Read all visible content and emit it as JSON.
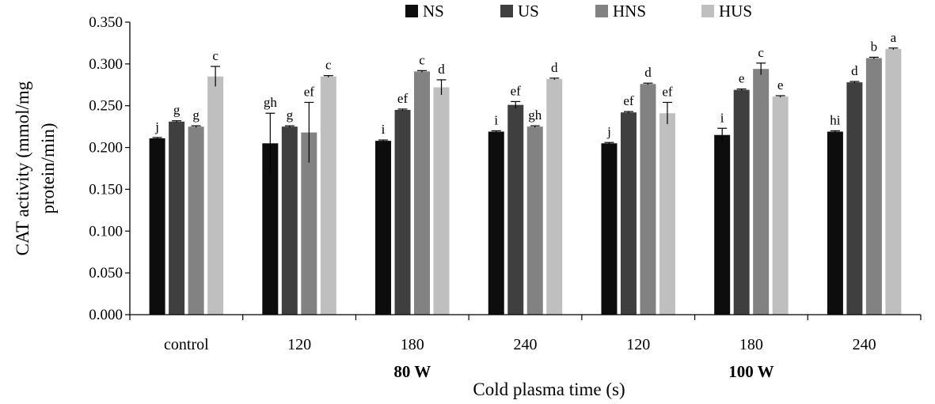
{
  "chart_data": {
    "type": "bar",
    "title": "",
    "xlabel": "Cold plasma time (s)",
    "ylabel": "CAT activity (mmol/mg protein/min)",
    "ylabel_lines": [
      "CAT activity (mmol/mg",
      "protein/min)"
    ],
    "ylim": [
      0,
      0.35
    ],
    "yticks": [
      "0.000",
      "0.050",
      "0.100",
      "0.150",
      "0.200",
      "0.250",
      "0.300",
      "0.350"
    ],
    "ytick_values": [
      0,
      0.05,
      0.1,
      0.15,
      0.2,
      0.25,
      0.3,
      0.35
    ],
    "categories": [
      "control",
      "120",
      "180",
      "240",
      "120",
      "180",
      "240"
    ],
    "groups": [
      {
        "label": "80 W",
        "categories": [
          1,
          2,
          3
        ]
      },
      {
        "label": "100 W",
        "categories": [
          4,
          5,
          6
        ]
      }
    ],
    "legend_position": "top",
    "series": [
      {
        "name": "NS",
        "color": "#0d0d0d",
        "values": [
          0.211,
          0.205,
          0.208,
          0.219,
          0.205,
          0.215,
          0.219
        ],
        "errors": [
          0.001,
          0.036,
          0.001,
          0.001,
          0.001,
          0.008,
          0.001
        ],
        "letters": [
          "j",
          "gh",
          "i",
          "i",
          "j",
          "i",
          "hi"
        ]
      },
      {
        "name": "US",
        "color": "#3f3f3f",
        "values": [
          0.231,
          0.225,
          0.245,
          0.251,
          0.242,
          0.269,
          0.278
        ],
        "errors": [
          0.001,
          0.001,
          0.001,
          0.004,
          0.001,
          0.001,
          0.001
        ],
        "letters": [
          "g",
          "g",
          "ef",
          "ef",
          "ef",
          "e",
          "d"
        ]
      },
      {
        "name": "HNS",
        "color": "#828282",
        "values": [
          0.225,
          0.218,
          0.291,
          0.225,
          0.276,
          0.294,
          0.307
        ],
        "errors": [
          0.001,
          0.036,
          0.001,
          0.001,
          0.001,
          0.007,
          0.001
        ],
        "letters": [
          "g",
          "ef",
          "c",
          "gh",
          "d",
          "c",
          "b"
        ]
      },
      {
        "name": "HUS",
        "color": "#bfbfbf",
        "values": [
          0.285,
          0.285,
          0.272,
          0.282,
          0.241,
          0.261,
          0.318
        ],
        "errors": [
          0.012,
          0.001,
          0.009,
          0.001,
          0.013,
          0.001,
          0.001
        ],
        "letters": [
          "c",
          "c",
          "d",
          "d",
          "ef",
          "e",
          "a"
        ]
      }
    ]
  }
}
